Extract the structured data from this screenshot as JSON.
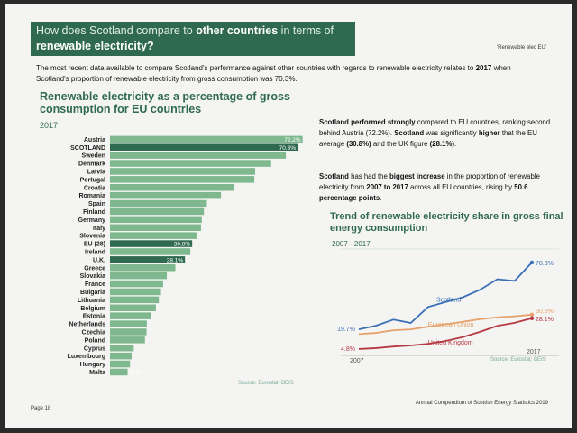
{
  "header": {
    "question_pre": "How does Scotland compare to ",
    "question_bold": "other countries",
    "question_post": " in terms of ",
    "question_line2": "renewable electricity?",
    "tag": "'Renewable elec EU'"
  },
  "intro": {
    "text1": "The most recent data available to compare Scotland's performance against other countries with regards to renewable electricity relates to ",
    "year": "2017",
    "text2": " when Scotland's proportion of renewable electricity from gross consumption was 70.3%."
  },
  "notes": {
    "n1_b1": "Scotland performed strongly",
    "n1_t1": " compared to EU countries, ranking second behind Austria (72.2%). ",
    "n1_b2": "Scotland",
    "n1_t2": " was significantly ",
    "n1_b3": "higher",
    "n1_t3": " that the EU average ",
    "n1_b4": "(30.8%)",
    "n1_t4": " and the UK figure ",
    "n1_b5": "(28.1%)",
    "n1_t5": ".",
    "n2_b1": "Scotland",
    "n2_t1": " has had the ",
    "n2_b2": "biggest increase",
    "n2_t2": " in the proportion of renewable electricity from ",
    "n2_b3": "2007 to 2017",
    "n2_t3": " across all EU countries, rising by ",
    "n2_b4": "50.6 percentage points",
    "n2_t4": "."
  },
  "footer": {
    "page": "Page 18",
    "publication": "Annual Compendium of Scottish Energy Statistics 2019"
  },
  "colors": {
    "brand_green": "#2f6a50",
    "bar_green": "#7fb88f",
    "highlight_green": "#2f6a50",
    "scotland_line": "#3b6fb6",
    "eu_line": "#e6a26a",
    "uk_line": "#b53a44"
  },
  "chart_data": [
    {
      "type": "bar",
      "orientation": "horizontal",
      "title": "Renewable electricity as a percentage of gross consumption for EU countries",
      "subtitle": "2017",
      "source": "Source: Eurostat; BEIS",
      "categories": [
        "Austria",
        "SCOTLAND",
        "Sweden",
        "Denmark",
        "Latvia",
        "Portugal",
        "Croatia",
        "Romania",
        "Spain",
        "Finland",
        "Germany",
        "Italy",
        "Slovenia",
        "EU (28)",
        "Ireland",
        "U.K.",
        "Greece",
        "Slovakia",
        "France",
        "Bulgaria",
        "Lithuania",
        "Belgium",
        "Estonia",
        "Netherlands",
        "Czechia",
        "Poland",
        "Cyprus",
        "Luxembourg",
        "Hungary",
        "Malta"
      ],
      "values": [
        72.2,
        70.3,
        65.9,
        60.4,
        54.4,
        54.1,
        46.4,
        41.6,
        36.3,
        35.2,
        34.4,
        34.1,
        32.4,
        30.8,
        30.1,
        28.1,
        24.5,
        21.3,
        19.9,
        19.1,
        18.3,
        17.2,
        15.5,
        13.8,
        13.7,
        13.1,
        8.9,
        8.1,
        7.5,
        6.6
      ],
      "labels_shown": {
        "0": "72.2%",
        "1": "70.3%",
        "13": "30.8%",
        "15": "28.1%",
        "29": "6.6%"
      },
      "highlighted": [
        1,
        13,
        15
      ]
    },
    {
      "type": "line",
      "title": "Trend of renewable electricity share in gross final energy consumption",
      "subtitle": "2007 - 2017",
      "source": "Source: Eurostat; BEIS",
      "x": [
        2007,
        2008,
        2009,
        2010,
        2011,
        2012,
        2013,
        2014,
        2015,
        2016,
        2017
      ],
      "x_tick_labels": [
        "2007",
        "2017"
      ],
      "series": [
        {
          "name": "Scotland",
          "values": [
            19.7,
            22.5,
            27.1,
            24.5,
            36.6,
            40.3,
            43.9,
            49.6,
            57.6,
            56.3,
            70.3
          ],
          "start_label": "19.7%",
          "end_label": "70.3%"
        },
        {
          "name": "European Union",
          "values": [
            16.1,
            17.0,
            19.0,
            19.7,
            21.7,
            23.5,
            25.4,
            27.4,
            28.8,
            29.6,
            30.8
          ],
          "end_label": "30.8%"
        },
        {
          "name": "United Kingdom",
          "values": [
            4.8,
            5.5,
            6.7,
            7.5,
            8.8,
            10.8,
            13.8,
            17.8,
            22.3,
            24.6,
            28.1
          ],
          "start_label": "4.8%",
          "end_label": "28.1%"
        }
      ]
    }
  ]
}
